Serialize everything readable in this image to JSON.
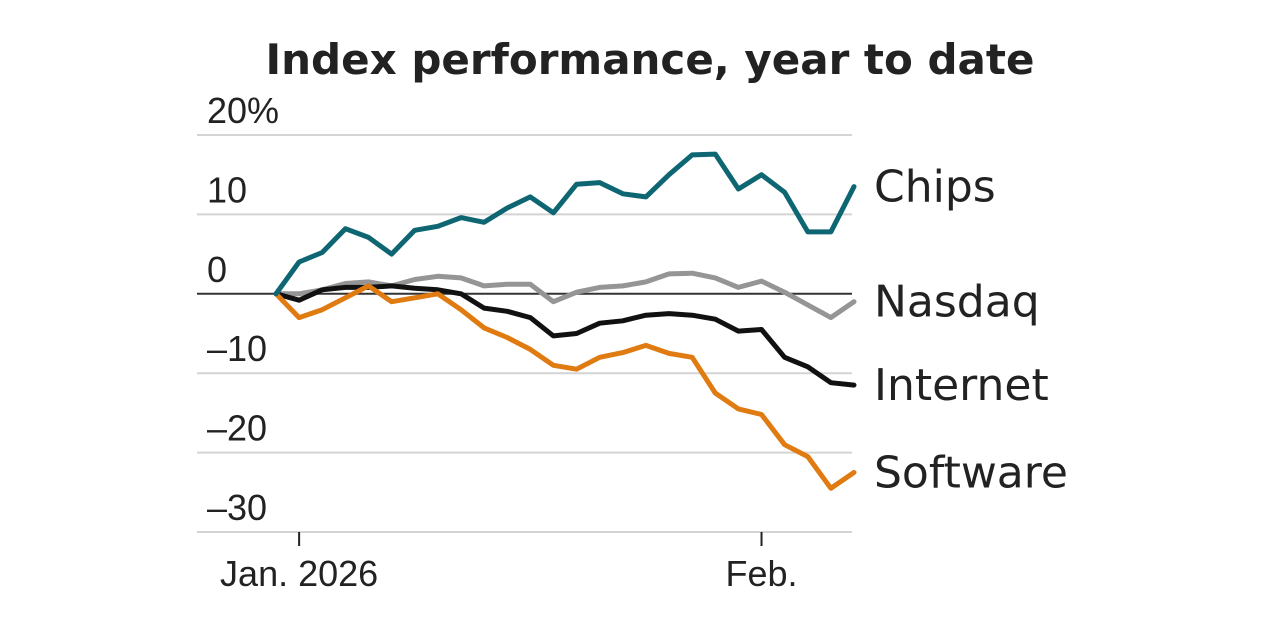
{
  "chart_data": {
    "type": "line",
    "title": "Index performance, year to date",
    "xlabel": "",
    "ylabel": "",
    "y_tick_labels": [
      "20%",
      "10",
      "0",
      "–10",
      "–20",
      "–30"
    ],
    "y_tick_values": [
      20,
      10,
      0,
      -10,
      -20,
      -30
    ],
    "ylim": [
      -30,
      20
    ],
    "x_tick_labels": [
      "Jan. 2026",
      "Feb."
    ],
    "x_tick_index": [
      1,
      21
    ],
    "xlim": [
      0,
      25
    ],
    "series": [
      {
        "name": "Chips",
        "color": "#0e6672",
        "values": [
          0,
          4,
          5.2,
          8.2,
          7.1,
          5,
          8,
          8.5,
          9.6,
          9,
          10.8,
          12.2,
          10.2,
          13.8,
          14,
          12.6,
          12.2,
          15,
          17.5,
          17.6,
          13.2,
          15,
          12.8,
          7.8,
          7.8,
          13.5
        ]
      },
      {
        "name": "Nasdaq",
        "color": "#959595",
        "values": [
          0,
          0,
          0.5,
          1.3,
          1.5,
          1,
          1.8,
          2.2,
          2,
          1,
          1.2,
          1.2,
          -1,
          0.2,
          0.8,
          1,
          1.5,
          2.5,
          2.6,
          2,
          0.8,
          1.6,
          0.2,
          -1.4,
          -3,
          -1
        ]
      },
      {
        "name": "Internet",
        "color": "#111111",
        "values": [
          0,
          -0.8,
          0.5,
          0.8,
          0.8,
          1,
          0.7,
          0.5,
          0,
          -1.8,
          -2.2,
          -3,
          -5.3,
          -5,
          -3.7,
          -3.4,
          -2.7,
          -2.5,
          -2.7,
          -3.2,
          -4.7,
          -4.5,
          -8,
          -9.2,
          -11.2,
          -11.5
        ]
      },
      {
        "name": "Software",
        "color": "#e07b12",
        "values": [
          0,
          -3,
          -2,
          -0.5,
          1,
          -1,
          -0.5,
          0,
          -2,
          -4.3,
          -5.5,
          -7,
          -9,
          -9.5,
          -8,
          -7.4,
          -6.5,
          -7.5,
          -8,
          -12.5,
          -14.5,
          -15.2,
          -19,
          -20.5,
          -24.5,
          -22.5
        ]
      }
    ]
  }
}
